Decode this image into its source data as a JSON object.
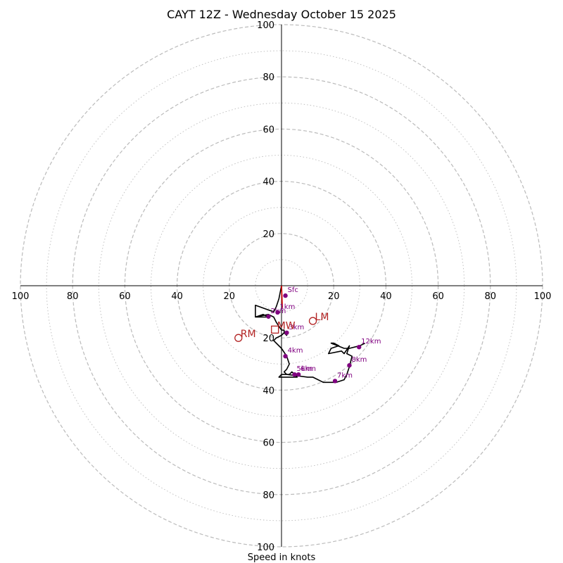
{
  "chart_data": {
    "type": "hodograph",
    "title": "CAYT 12Z - Wednesday October 15 2025",
    "xlabel": "Speed in knots",
    "ylabel": "",
    "units": "knots",
    "range_max": 100,
    "ring_step": 20,
    "grid": true,
    "tick_labels": {
      "x_left": [
        "100",
        "80",
        "60",
        "40",
        "20"
      ],
      "x_right": [
        "20",
        "40",
        "60",
        "80",
        "100"
      ],
      "y_top": [
        "20",
        "40",
        "60",
        "80",
        "100"
      ],
      "y_bottom": [
        "20",
        "40",
        "60",
        "80",
        "100"
      ]
    },
    "colors": {
      "hodograph_line": "#000000",
      "height_markers": "#800080",
      "storm_motion": "#b22222",
      "surface_vector": "#cc0000",
      "grid": "#bbbbbb"
    },
    "hodograph": {
      "u": [
        0,
        -1,
        -2,
        -3,
        -10,
        -10,
        -5,
        -7,
        -10,
        -5,
        -3,
        -2,
        0,
        1,
        1,
        2,
        1,
        0,
        -2,
        -3,
        0,
        2,
        3,
        2,
        1,
        2,
        3,
        4,
        5,
        6,
        -1,
        0,
        2,
        6,
        10,
        12,
        16,
        21,
        24,
        25,
        26,
        27,
        25,
        26,
        24,
        23,
        18,
        19,
        22,
        20,
        19,
        24,
        26,
        30,
        32
      ],
      "v": [
        0,
        -5,
        -8,
        -10,
        -7.5,
        -12,
        -12,
        -11,
        -12,
        -11,
        -12,
        -14,
        -17,
        -17,
        -18,
        -19,
        -18,
        -19,
        -20,
        -21,
        -24,
        -27,
        -30,
        -32,
        -33,
        -34,
        -34,
        -33,
        -34,
        -35,
        -35,
        -34,
        -34,
        -34.5,
        -35,
        -35,
        -37,
        -37,
        -36,
        -34,
        -31,
        -27,
        -26,
        -23,
        -26,
        -25,
        -26,
        -24,
        -23,
        -22,
        -22,
        -24,
        -24,
        -23,
        -22
      ]
    },
    "height_markers": [
      {
        "label": "Sfc",
        "u": 1.5,
        "v": -3.8
      },
      {
        "label": "1km",
        "u": -1.5,
        "v": -10.2
      },
      {
        "label": "2km",
        "u": -5,
        "v": -11.8
      },
      {
        "label": "3km",
        "u": 2,
        "v": -18
      },
      {
        "label": "4km",
        "u": 1.5,
        "v": -27
      },
      {
        "label": "5km",
        "u": 5,
        "v": -34
      },
      {
        "label": "6km",
        "u": 6.5,
        "v": -34
      },
      {
        "label": "7km",
        "u": 20.5,
        "v": -36.5
      },
      {
        "label": "8km",
        "u": 26,
        "v": -30.5
      },
      {
        "label": "12km",
        "u": 29.7,
        "v": -23.5
      }
    ],
    "storm_motion": [
      {
        "label": "LM",
        "u": 12,
        "v": -13.5,
        "marker": "circle"
      },
      {
        "label": "RM",
        "u": -16.5,
        "v": -20,
        "marker": "circle"
      },
      {
        "label": "MW",
        "u": -2.5,
        "v": -16.8,
        "marker": "square"
      }
    ],
    "surface_vector": {
      "u": 0,
      "v": 0,
      "u2": 0.3,
      "v2": -8.5
    }
  }
}
